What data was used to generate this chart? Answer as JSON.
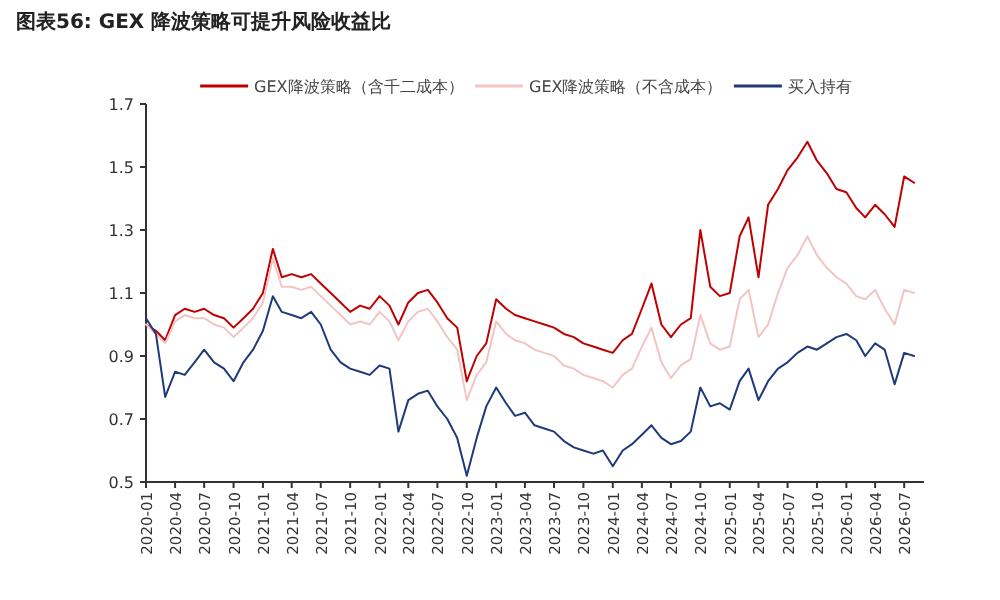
{
  "chart_data": {
    "type": "line",
    "title": "图表56:  GEX 降波策略可提升风险收益比",
    "x": [
      "2020-01",
      "2020-02",
      "2020-03",
      "2020-04",
      "2020-05",
      "2020-06",
      "2020-07",
      "2020-08",
      "2020-09",
      "2020-10",
      "2020-11",
      "2020-12",
      "2021-01",
      "2021-02",
      "2021-03",
      "2021-04",
      "2021-05",
      "2021-06",
      "2021-07",
      "2021-08",
      "2021-09",
      "2021-10",
      "2021-11",
      "2021-12",
      "2022-01",
      "2022-02",
      "2022-03",
      "2022-04",
      "2022-05",
      "2022-06",
      "2022-07",
      "2022-08",
      "2022-09",
      "2022-10",
      "2022-11",
      "2022-12",
      "2023-01",
      "2023-02",
      "2023-03",
      "2023-04",
      "2023-05",
      "2023-06",
      "2023-07",
      "2023-08",
      "2023-09",
      "2023-10",
      "2023-11",
      "2023-12",
      "2024-01",
      "2024-02",
      "2024-03",
      "2024-04",
      "2024-05",
      "2024-06",
      "2024-07",
      "2024-08",
      "2024-09",
      "2024-10",
      "2024-11",
      "2024-12",
      "2025-01",
      "2025-02",
      "2025-03",
      "2025-04",
      "2025-05",
      "2025-06",
      "2025-07",
      "2025-08",
      "2025-09",
      "2025-10",
      "2025-11",
      "2025-12",
      "2026-01",
      "2026-02",
      "2026-03",
      "2026-04",
      "2026-05",
      "2026-06",
      "2026-07",
      "2026-08"
    ],
    "series": [
      {
        "name": "GEX降波策略（含千二成本）",
        "color": "#c00000",
        "values": [
          1.0,
          0.98,
          0.95,
          1.03,
          1.05,
          1.04,
          1.05,
          1.03,
          1.02,
          0.99,
          1.02,
          1.05,
          1.1,
          1.24,
          1.15,
          1.16,
          1.15,
          1.16,
          1.13,
          1.1,
          1.07,
          1.04,
          1.06,
          1.05,
          1.09,
          1.06,
          1.0,
          1.07,
          1.1,
          1.11,
          1.07,
          1.02,
          0.99,
          0.82,
          0.9,
          0.94,
          1.08,
          1.05,
          1.03,
          1.02,
          1.01,
          1.0,
          0.99,
          0.97,
          0.96,
          0.94,
          0.93,
          0.92,
          0.91,
          0.95,
          0.97,
          1.05,
          1.13,
          1.0,
          0.96,
          1.0,
          1.02,
          1.3,
          1.12,
          1.09,
          1.1,
          1.28,
          1.34,
          1.15,
          1.38,
          1.43,
          1.49,
          1.53,
          1.58,
          1.52,
          1.48,
          1.43,
          1.42,
          1.37,
          1.34,
          1.38,
          1.35,
          1.31,
          1.47,
          1.45
        ]
      },
      {
        "name": "GEX降波策略（不含成本）",
        "color": "#f2c4c4",
        "values": [
          1.0,
          0.97,
          0.94,
          1.01,
          1.03,
          1.02,
          1.02,
          1.0,
          0.99,
          0.96,
          0.99,
          1.02,
          1.07,
          1.21,
          1.12,
          1.12,
          1.11,
          1.12,
          1.09,
          1.06,
          1.03,
          1.0,
          1.01,
          1.0,
          1.04,
          1.01,
          0.95,
          1.01,
          1.04,
          1.05,
          1.01,
          0.96,
          0.92,
          0.76,
          0.84,
          0.88,
          1.01,
          0.97,
          0.95,
          0.94,
          0.92,
          0.91,
          0.9,
          0.87,
          0.86,
          0.84,
          0.83,
          0.82,
          0.8,
          0.84,
          0.86,
          0.93,
          0.99,
          0.88,
          0.83,
          0.87,
          0.89,
          1.03,
          0.94,
          0.92,
          0.93,
          1.08,
          1.11,
          0.96,
          1.0,
          1.1,
          1.18,
          1.22,
          1.28,
          1.22,
          1.18,
          1.15,
          1.13,
          1.09,
          1.08,
          1.11,
          1.05,
          1.0,
          1.11,
          1.1
        ]
      },
      {
        "name": "买入持有",
        "color": "#1f3a7a",
        "values": [
          1.02,
          0.97,
          0.77,
          0.85,
          0.84,
          0.88,
          0.92,
          0.88,
          0.86,
          0.82,
          0.88,
          0.92,
          0.98,
          1.09,
          1.04,
          1.03,
          1.02,
          1.04,
          1.0,
          0.92,
          0.88,
          0.86,
          0.85,
          0.84,
          0.87,
          0.86,
          0.66,
          0.76,
          0.78,
          0.79,
          0.74,
          0.7,
          0.64,
          0.52,
          0.64,
          0.74,
          0.8,
          0.75,
          0.71,
          0.72,
          0.68,
          0.67,
          0.66,
          0.63,
          0.61,
          0.6,
          0.59,
          0.6,
          0.55,
          0.6,
          0.62,
          0.65,
          0.68,
          0.64,
          0.62,
          0.63,
          0.66,
          0.8,
          0.74,
          0.75,
          0.73,
          0.82,
          0.86,
          0.76,
          0.82,
          0.86,
          0.88,
          0.91,
          0.93,
          0.92,
          0.94,
          0.96,
          0.97,
          0.95,
          0.9,
          0.94,
          0.92,
          0.81,
          0.91,
          0.9
        ]
      }
    ],
    "xlim": [
      "2020-01",
      "2026-09"
    ],
    "xticks": [
      "2020-01",
      "2020-04",
      "2020-07",
      "2020-10",
      "2021-01",
      "2021-04",
      "2021-07",
      "2021-10",
      "2022-01",
      "2022-04",
      "2022-07",
      "2022-10",
      "2023-01",
      "2023-04",
      "2023-07",
      "2023-10",
      "2024-01",
      "2024-04",
      "2024-07",
      "2024-10",
      "2025-01",
      "2025-04",
      "2025-07",
      "2025-10",
      "2026-01",
      "2026-04",
      "2026-07"
    ],
    "ylim": [
      0.5,
      1.7
    ],
    "yticks": [
      0.5,
      0.7,
      0.9,
      1.1,
      1.3,
      1.5,
      1.7
    ],
    "grid": false,
    "legend": "top",
    "line_style": "solid",
    "marker": "none"
  }
}
